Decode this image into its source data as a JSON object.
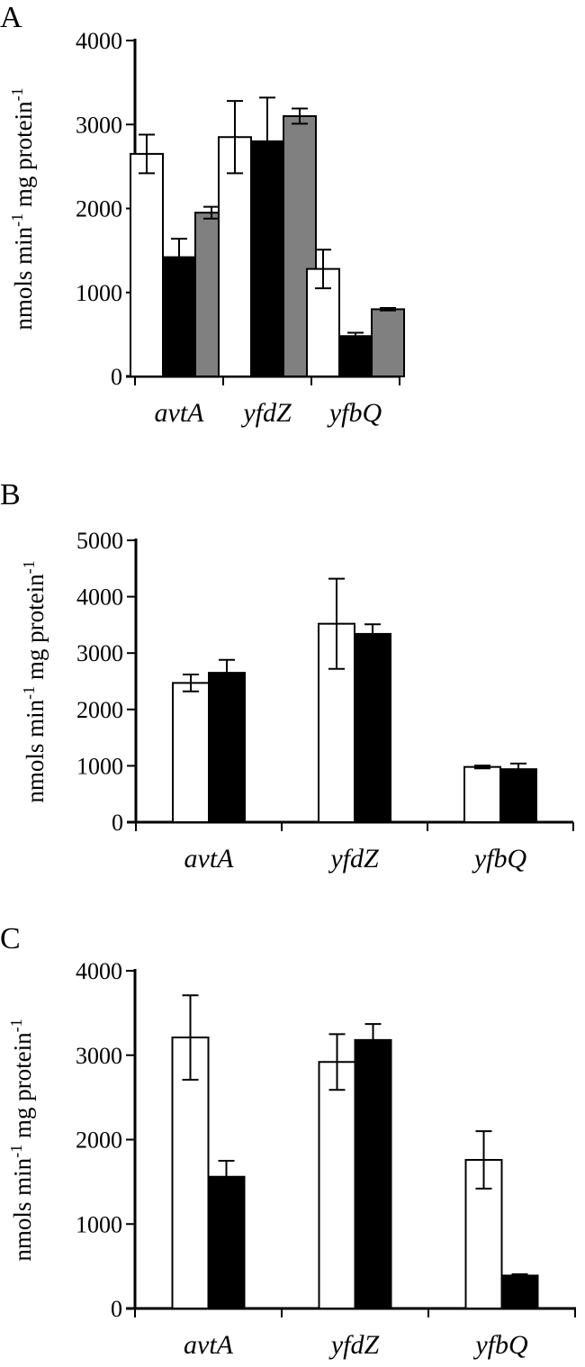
{
  "chart_data": [
    {
      "panel_label": "A",
      "type": "bar",
      "categories": [
        "avtA",
        "yfdZ",
        "yfbQ"
      ],
      "ylabel": "nmols min-1 mg protein-1",
      "ylabel_main": "nmols min",
      "ylabel_sup1": "-1",
      "ylabel_mid": " mg protein",
      "ylabel_sup2": "-1",
      "ylim": [
        0,
        4000
      ],
      "yticks": [
        "0",
        "1000",
        "2000",
        "3000",
        "4000"
      ],
      "ytick_values": [
        0,
        1000,
        2000,
        3000,
        4000
      ],
      "series_colors": [
        "#ffffff",
        "#000000",
        "#808080"
      ],
      "series": [
        {
          "values": [
            2650,
            2850,
            1280
          ],
          "errors": [
            230,
            430,
            230
          ]
        },
        {
          "values": [
            1420,
            2800,
            480
          ],
          "errors": [
            220,
            520,
            40
          ]
        },
        {
          "values": [
            1950,
            3100,
            800
          ],
          "errors": [
            70,
            90,
            15
          ]
        }
      ]
    },
    {
      "panel_label": "B",
      "type": "bar",
      "categories": [
        "avtA",
        "yfdZ",
        "yfbQ"
      ],
      "ylabel": "nmols min-1 mg protein-1",
      "ylabel_main": "nmols min",
      "ylabel_sup1": "-1",
      "ylabel_mid": " mg protein",
      "ylabel_sup2": "-1",
      "ylim": [
        0,
        5000
      ],
      "yticks": [
        "0",
        "1000",
        "2000",
        "3000",
        "4000",
        "5000"
      ],
      "ytick_values": [
        0,
        1000,
        2000,
        3000,
        4000,
        5000
      ],
      "series_colors": [
        "#ffffff",
        "#000000"
      ],
      "series": [
        {
          "values": [
            2470,
            3520,
            980
          ],
          "errors": [
            150,
            800,
            25
          ]
        },
        {
          "values": [
            2650,
            3340,
            940
          ],
          "errors": [
            230,
            170,
            100
          ]
        }
      ]
    },
    {
      "panel_label": "C",
      "type": "bar",
      "categories": [
        "avtA",
        "yfdZ",
        "yfbQ"
      ],
      "ylabel": "nmols min-1 mg protein-1",
      "ylabel_main": "nmols min",
      "ylabel_sup1": "-1",
      "ylabel_mid": " mg protein",
      "ylabel_sup2": "-1",
      "ylim": [
        0,
        4000
      ],
      "yticks": [
        "0",
        "1000",
        "2000",
        "3000",
        "4000"
      ],
      "ytick_values": [
        0,
        1000,
        2000,
        3000,
        4000
      ],
      "series_colors": [
        "#ffffff",
        "#000000"
      ],
      "series": [
        {
          "values": [
            3210,
            2920,
            1760
          ],
          "errors": [
            500,
            330,
            340
          ]
        },
        {
          "values": [
            1560,
            3180,
            390
          ],
          "errors": [
            190,
            190,
            15
          ]
        }
      ]
    }
  ]
}
